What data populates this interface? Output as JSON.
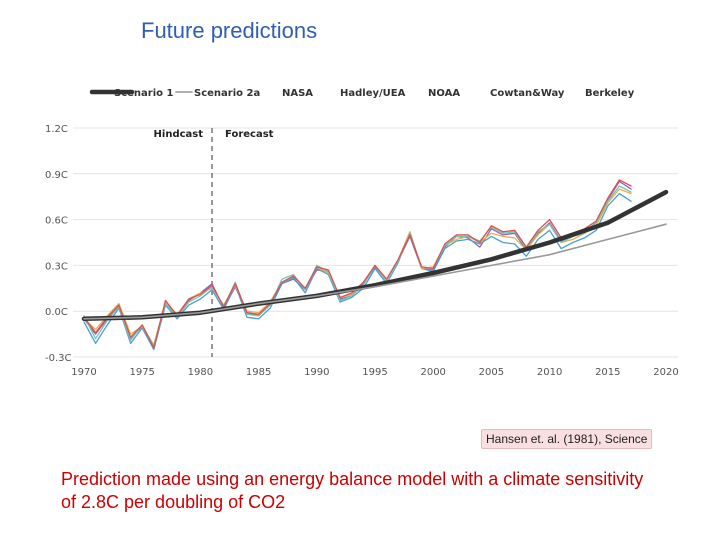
{
  "slide": {
    "title": "Future predictions",
    "citation": "Hansen et. al. (1981), Science",
    "caption": "Prediction made using an energy balance model with a climate sensitivity of 2.8C per doubling of CO2"
  },
  "chart_data": {
    "type": "line",
    "title": "",
    "xlabel": "",
    "ylabel": "",
    "xlim": [
      1968,
      2021
    ],
    "ylim": [
      -0.3,
      1.2
    ],
    "x_ticks": [
      "1970",
      "1975",
      "1980",
      "1985",
      "1990",
      "1995",
      "2000",
      "2005",
      "2010",
      "2015",
      "2020"
    ],
    "y_ticks": [
      "-0.3C",
      "0.0C",
      "0.3C",
      "0.6C",
      "0.9C",
      "1.2C"
    ],
    "grid": "horizontal",
    "legend_position": "top",
    "annotations": {
      "hindcast_label": "Hindcast",
      "forecast_label": "Forecast",
      "divider_year": 1981
    },
    "series": [
      {
        "name": "Scenario 1",
        "color": "#333333",
        "style": "thick",
        "x": [
          1970,
          1975,
          1980,
          1985,
          1990,
          1995,
          2000,
          2005,
          2010,
          2015,
          2020
        ],
        "values": [
          -0.05,
          -0.04,
          -0.01,
          0.05,
          0.1,
          0.17,
          0.25,
          0.34,
          0.45,
          0.58,
          0.78
        ]
      },
      {
        "name": "Scenario 2a",
        "color": "#999999",
        "style": "thin",
        "x": [
          1970,
          1975,
          1980,
          1985,
          1990,
          1995,
          2000,
          2005,
          2010,
          2015,
          2020
        ],
        "values": [
          -0.05,
          -0.04,
          -0.01,
          0.05,
          0.1,
          0.16,
          0.23,
          0.3,
          0.37,
          0.47,
          0.57
        ]
      },
      {
        "name": "NASA",
        "color": "#8e6bb5",
        "style": "obs",
        "x": [
          1970,
          1971,
          1972,
          1973,
          1974,
          1975,
          1976,
          1977,
          1978,
          1979,
          1980,
          1981,
          1982,
          1983,
          1984,
          1985,
          1986,
          1987,
          1988,
          1989,
          1990,
          1991,
          1992,
          1993,
          1994,
          1995,
          1996,
          1997,
          1998,
          1999,
          2000,
          2001,
          2002,
          2003,
          2004,
          2005,
          2006,
          2007,
          2008,
          2009,
          2010,
          2011,
          2012,
          2013,
          2014,
          2015,
          2016,
          2017
        ],
        "values": [
          -0.05,
          -0.15,
          -0.05,
          0.03,
          -0.18,
          -0.1,
          -0.25,
          0.07,
          -0.05,
          0.07,
          0.12,
          0.18,
          0.02,
          0.16,
          -0.01,
          -0.03,
          0.05,
          0.18,
          0.21,
          0.14,
          0.27,
          0.26,
          0.08,
          0.1,
          0.18,
          0.29,
          0.2,
          0.33,
          0.49,
          0.28,
          0.27,
          0.42,
          0.49,
          0.48,
          0.42,
          0.54,
          0.5,
          0.51,
          0.4,
          0.51,
          0.58,
          0.46,
          0.49,
          0.52,
          0.58,
          0.73,
          0.85,
          0.8
        ]
      },
      {
        "name": "Hadley/UEA",
        "color": "#4a9fd5",
        "style": "obs",
        "x": [
          1970,
          1971,
          1972,
          1973,
          1974,
          1975,
          1976,
          1977,
          1978,
          1979,
          1980,
          1981,
          1982,
          1983,
          1984,
          1985,
          1986,
          1987,
          1988,
          1989,
          1990,
          1991,
          1992,
          1993,
          1994,
          1995,
          1996,
          1997,
          1998,
          1999,
          2000,
          2001,
          2002,
          2003,
          2004,
          2005,
          2006,
          2007,
          2008,
          2009,
          2010,
          2011,
          2012,
          2013,
          2014,
          2015,
          2016,
          2017
        ],
        "values": [
          -0.07,
          -0.21,
          -0.09,
          0.02,
          -0.21,
          -0.11,
          -0.25,
          0.04,
          -0.05,
          0.04,
          0.08,
          0.14,
          0.01,
          0.17,
          -0.04,
          -0.05,
          0.02,
          0.18,
          0.22,
          0.12,
          0.28,
          0.24,
          0.06,
          0.09,
          0.15,
          0.28,
          0.18,
          0.32,
          0.52,
          0.28,
          0.26,
          0.41,
          0.46,
          0.47,
          0.44,
          0.49,
          0.45,
          0.44,
          0.36,
          0.47,
          0.53,
          0.41,
          0.45,
          0.48,
          0.53,
          0.69,
          0.77,
          0.72
        ]
      },
      {
        "name": "NOAA",
        "color": "#e8b04a",
        "style": "obs",
        "x": [
          1970,
          1971,
          1972,
          1973,
          1974,
          1975,
          1976,
          1977,
          1978,
          1979,
          1980,
          1981,
          1982,
          1983,
          1984,
          1985,
          1986,
          1987,
          1988,
          1989,
          1990,
          1991,
          1992,
          1993,
          1994,
          1995,
          1996,
          1997,
          1998,
          1999,
          2000,
          2001,
          2002,
          2003,
          2004,
          2005,
          2006,
          2007,
          2008,
          2009,
          2010,
          2011,
          2012,
          2013,
          2014,
          2015,
          2016,
          2017
        ],
        "values": [
          -0.05,
          -0.12,
          -0.03,
          0.05,
          -0.15,
          -0.1,
          -0.22,
          0.06,
          -0.02,
          0.08,
          0.12,
          0.15,
          0.04,
          0.17,
          0.0,
          -0.01,
          0.06,
          0.19,
          0.23,
          0.15,
          0.29,
          0.25,
          0.09,
          0.11,
          0.19,
          0.3,
          0.2,
          0.34,
          0.52,
          0.28,
          0.29,
          0.43,
          0.47,
          0.49,
          0.45,
          0.51,
          0.49,
          0.48,
          0.4,
          0.5,
          0.57,
          0.45,
          0.47,
          0.51,
          0.56,
          0.71,
          0.8,
          0.77
        ]
      },
      {
        "name": "Cowtan&Way",
        "color": "#7cc0b8",
        "style": "obs",
        "x": [
          1970,
          1971,
          1972,
          1973,
          1974,
          1975,
          1976,
          1977,
          1978,
          1979,
          1980,
          1981,
          1982,
          1983,
          1984,
          1985,
          1986,
          1987,
          1988,
          1989,
          1990,
          1991,
          1992,
          1993,
          1994,
          1995,
          1996,
          1997,
          1998,
          1999,
          2000,
          2001,
          2002,
          2003,
          2004,
          2005,
          2006,
          2007,
          2008,
          2009,
          2010,
          2011,
          2012,
          2013,
          2014,
          2015,
          2016,
          2017
        ],
        "values": [
          -0.03,
          -0.18,
          -0.06,
          0.03,
          -0.19,
          -0.09,
          -0.23,
          0.05,
          -0.04,
          0.06,
          0.1,
          0.16,
          0.03,
          0.19,
          -0.02,
          -0.03,
          0.04,
          0.21,
          0.24,
          0.14,
          0.3,
          0.26,
          0.07,
          0.1,
          0.17,
          0.3,
          0.19,
          0.33,
          0.51,
          0.29,
          0.28,
          0.43,
          0.49,
          0.49,
          0.46,
          0.55,
          0.51,
          0.52,
          0.41,
          0.52,
          0.57,
          0.45,
          0.49,
          0.51,
          0.58,
          0.72,
          0.82,
          0.78
        ]
      },
      {
        "name": "Berkeley",
        "color": "#d9534f",
        "style": "obs",
        "x": [
          1970,
          1971,
          1972,
          1973,
          1974,
          1975,
          1976,
          1977,
          1978,
          1979,
          1980,
          1981,
          1982,
          1983,
          1984,
          1985,
          1986,
          1987,
          1988,
          1989,
          1990,
          1991,
          1992,
          1993,
          1994,
          1995,
          1996,
          1997,
          1998,
          1999,
          2000,
          2001,
          2002,
          2003,
          2004,
          2005,
          2006,
          2007,
          2008,
          2009,
          2010,
          2011,
          2012,
          2013,
          2014,
          2015,
          2016,
          2017
        ],
        "values": [
          -0.04,
          -0.14,
          -0.04,
          0.04,
          -0.17,
          -0.09,
          -0.24,
          0.07,
          -0.03,
          0.08,
          0.11,
          0.17,
          0.03,
          0.18,
          -0.01,
          -0.02,
          0.05,
          0.19,
          0.23,
          0.15,
          0.29,
          0.27,
          0.09,
          0.12,
          0.19,
          0.3,
          0.21,
          0.34,
          0.5,
          0.29,
          0.28,
          0.44,
          0.5,
          0.5,
          0.45,
          0.56,
          0.52,
          0.53,
          0.42,
          0.53,
          0.6,
          0.48,
          0.51,
          0.54,
          0.59,
          0.74,
          0.86,
          0.82
        ]
      }
    ]
  }
}
